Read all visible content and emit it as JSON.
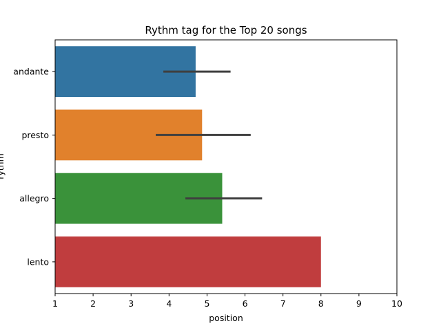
{
  "chart_data": {
    "type": "bar",
    "orientation": "horizontal",
    "title": "Rythm tag for the Top 20 songs",
    "xlabel": "position",
    "ylabel": "rythm",
    "xlim": [
      1,
      10
    ],
    "xticks": [
      1,
      2,
      3,
      4,
      5,
      6,
      7,
      8,
      9,
      10
    ],
    "grid": false,
    "categories": [
      "andante",
      "presto",
      "allegro",
      "lento"
    ],
    "values": [
      4.7,
      4.87,
      5.4,
      8.0
    ],
    "error_low": [
      3.85,
      3.65,
      4.43,
      null
    ],
    "error_high": [
      5.62,
      6.15,
      6.45,
      null
    ],
    "colors": [
      "#3274a1",
      "#e1812c",
      "#3a923a",
      "#c03d3e"
    ],
    "error_color": "#3f3f3f"
  }
}
